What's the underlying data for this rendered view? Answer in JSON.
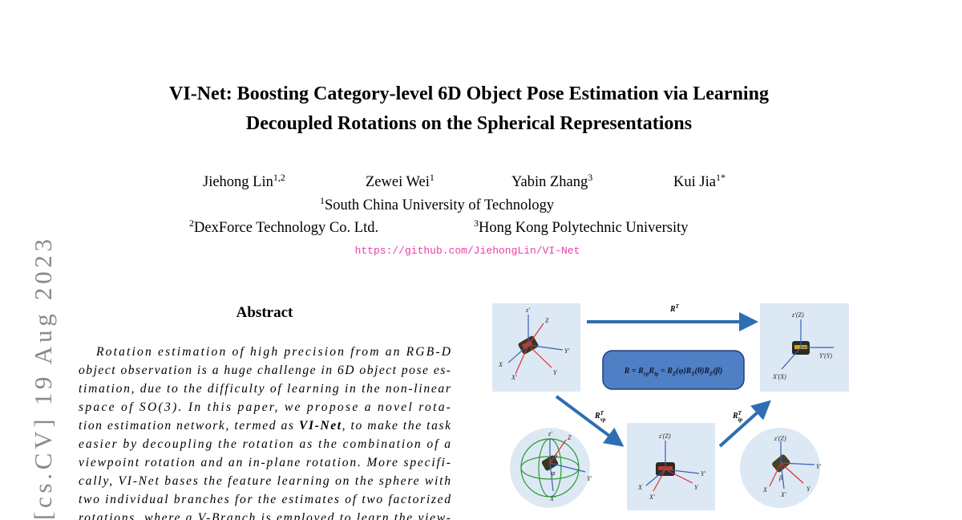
{
  "header": {
    "title_lines": [
      "VI-Net: Boosting Category-level 6D Object Pose Estimation via Learning",
      "Decoupled Rotations on the Spherical Representations"
    ],
    "authors": [
      {
        "name": "Jiehong Lin",
        "affil": "1,2"
      },
      {
        "name": "Zewei Wei",
        "affil": "1"
      },
      {
        "name": "Yabin Zhang",
        "affil": "3"
      },
      {
        "name": "Kui Jia",
        "affil": "1*"
      }
    ],
    "affiliations": [
      {
        "mark": "1",
        "name": "South China University of Technology"
      },
      {
        "mark": "2",
        "name": "DexForce Technology Co. Ltd."
      },
      {
        "mark": "3",
        "name": "Hong Kong Polytechnic University"
      }
    ],
    "url": "https://github.com/JiehongLin/VI-Net"
  },
  "arxiv_stamp": "[cs.CV]  19 Aug 2023",
  "abstract": {
    "heading": "Abstract",
    "lines": [
      "Rotation estimation of high precision from an RGB-D",
      "object observation is a huge challenge in 6D object pose es-",
      "timation, due to the difficulty of learning in the non-linear",
      "space of SO(3).  In this paper, we propose a novel rota-",
      [
        "tion estimation network, termed as ",
        "VI-Net",
        ", to make the task"
      ],
      "easier by decoupling the rotation as the combination of a",
      "viewpoint rotation and an in-plane rotation.  More specifi-",
      "cally, VI-Net bases the feature learning on the sphere with",
      "two individual branches for the estimates of two factorized",
      "rotations, where a V-Branch is employed to learn the view-"
    ]
  },
  "figure": {
    "top_arrow": {
      "base": "R",
      "sup": "T"
    },
    "vp_arrow": {
      "base": "R",
      "sup": "T",
      "sub": "vp"
    },
    "ip_arrow": {
      "base": "R",
      "sup": "T",
      "sub": "ip"
    },
    "formula": [
      "R = R",
      "vp",
      "R",
      "ip",
      " = R",
      "Z",
      "(φ)R",
      "Y",
      "(θ)R",
      "Z",
      "(β)"
    ],
    "panel_a": [
      "z'",
      "Z",
      "Y'",
      "X",
      "X'",
      "Y"
    ],
    "panel_b": [
      "z'(Z)",
      "Y'(Y)",
      "X'(X)"
    ],
    "panel_c": [
      "z'(Z)",
      "Y'",
      "X",
      "X'",
      "Y"
    ],
    "sphere_left": [
      "z'",
      "Z",
      "Y'",
      "X'",
      "θ",
      "φ"
    ],
    "sphere_right": [
      "z'(Z)",
      "Y'",
      "X",
      "X'",
      "β",
      "Y"
    ]
  }
}
